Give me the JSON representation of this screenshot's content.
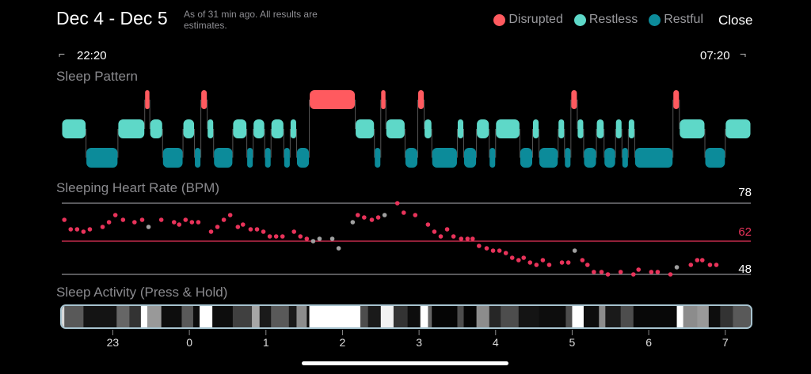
{
  "header": {
    "title": "Dec 4 - Dec 5",
    "subtitle": "As of 31 min ago. All results are estimates.",
    "close_label": "Close"
  },
  "legend": [
    {
      "label": "Disrupted",
      "color": "#ff5a5f"
    },
    {
      "label": "Restless",
      "color": "#5ed8c8"
    },
    {
      "label": "Restful",
      "color": "#0c8b9a"
    }
  ],
  "range": {
    "start": "22:20",
    "end": "07:20",
    "start_bracket": "⌐",
    "end_bracket": "¬"
  },
  "sections": {
    "pattern": "Sleep Pattern",
    "heart_rate": "Sleeping Heart Rate (BPM)",
    "activity": "Sleep Activity (Press & Hold)"
  },
  "chart_data": [
    {
      "type": "timeline",
      "title": "Sleep Pattern",
      "x_unit": "minutes since 22:20",
      "xlim": [
        0,
        540
      ],
      "stages": [
        "Disrupted",
        "Restless",
        "Restful"
      ],
      "segments": [
        [
          "Restless",
          0,
          19
        ],
        [
          "Restful",
          19,
          44
        ],
        [
          "Restless",
          44,
          65
        ],
        [
          "Disrupted",
          65,
          69
        ],
        [
          "Restless",
          69,
          79
        ],
        [
          "Restful",
          79,
          95
        ],
        [
          "Restless",
          95,
          104
        ],
        [
          "Restful",
          104,
          109
        ],
        [
          "Disrupted",
          109,
          114
        ],
        [
          "Restless",
          114,
          119
        ],
        [
          "Restful",
          119,
          134
        ],
        [
          "Restless",
          134,
          145
        ],
        [
          "Restful",
          145,
          150
        ],
        [
          "Restless",
          150,
          159
        ],
        [
          "Restful",
          159,
          164
        ],
        [
          "Restless",
          164,
          174
        ],
        [
          "Restful",
          174,
          179
        ],
        [
          "Restless",
          179,
          184
        ],
        [
          "Restful",
          184,
          194
        ],
        [
          "Disrupted",
          194,
          230
        ],
        [
          "Restless",
          230,
          245
        ],
        [
          "Restful",
          245,
          250
        ],
        [
          "Disrupted",
          250,
          254
        ],
        [
          "Restless",
          254,
          269
        ],
        [
          "Restful",
          269,
          279
        ],
        [
          "Disrupted",
          279,
          284
        ],
        [
          "Restless",
          284,
          290
        ],
        [
          "Restful",
          290,
          310
        ],
        [
          "Restless",
          310,
          315
        ],
        [
          "Restful",
          315,
          325
        ],
        [
          "Restless",
          325,
          335
        ],
        [
          "Restful",
          335,
          340
        ],
        [
          "Restless",
          340,
          359
        ],
        [
          "Restful",
          359,
          369
        ],
        [
          "Restless",
          369,
          374
        ],
        [
          "Restful",
          374,
          389
        ],
        [
          "Restless",
          389,
          394
        ],
        [
          "Restful",
          394,
          399
        ],
        [
          "Disrupted",
          399,
          404
        ],
        [
          "Restless",
          404,
          409
        ],
        [
          "Restful",
          409,
          419
        ],
        [
          "Restless",
          419,
          425
        ],
        [
          "Restful",
          425,
          434
        ],
        [
          "Restless",
          434,
          439
        ],
        [
          "Restful",
          439,
          444
        ],
        [
          "Restless",
          444,
          449
        ],
        [
          "Restful",
          449,
          479
        ],
        [
          "Disrupted",
          479,
          484
        ],
        [
          "Restless",
          484,
          504
        ],
        [
          "Restful",
          504,
          520
        ],
        [
          "Restless",
          520,
          540
        ]
      ]
    },
    {
      "type": "scatter",
      "title": "Sleeping Heart Rate (BPM)",
      "x_unit": "minutes since 22:20",
      "xlim": [
        0,
        540
      ],
      "ylim": [
        48,
        78
      ],
      "reference_lines": [
        {
          "value": 78,
          "label": "78",
          "color": "#8e8e93"
        },
        {
          "value": 62,
          "label": "62",
          "color": "#e8335a"
        },
        {
          "value": 48,
          "label": "48",
          "color": "#8e8e93"
        }
      ],
      "points": [
        [
          2,
          71,
          0
        ],
        [
          7,
          67,
          0
        ],
        [
          12,
          67,
          0
        ],
        [
          17,
          66,
          0
        ],
        [
          22,
          67,
          0
        ],
        [
          32,
          68,
          0
        ],
        [
          37,
          70,
          0
        ],
        [
          42,
          73,
          0
        ],
        [
          48,
          71,
          0
        ],
        [
          57,
          70,
          0
        ],
        [
          63,
          71,
          0
        ],
        [
          68,
          68,
          1
        ],
        [
          78,
          71,
          0
        ],
        [
          88,
          70,
          0
        ],
        [
          92,
          69,
          0
        ],
        [
          97,
          71,
          0
        ],
        [
          102,
          70,
          0
        ],
        [
          107,
          70,
          0
        ],
        [
          117,
          66,
          0
        ],
        [
          122,
          68,
          0
        ],
        [
          127,
          71,
          0
        ],
        [
          132,
          73,
          0
        ],
        [
          138,
          68,
          0
        ],
        [
          142,
          69,
          0
        ],
        [
          148,
          67,
          0
        ],
        [
          153,
          67,
          0
        ],
        [
          158,
          66,
          0
        ],
        [
          163,
          64,
          0
        ],
        [
          168,
          64,
          0
        ],
        [
          173,
          64,
          0
        ],
        [
          182,
          66,
          0
        ],
        [
          187,
          64,
          0
        ],
        [
          192,
          63,
          0
        ],
        [
          197,
          62,
          1
        ],
        [
          202,
          63,
          1
        ],
        [
          212,
          63,
          1
        ],
        [
          217,
          59,
          1
        ],
        [
          228,
          70,
          1
        ],
        [
          232,
          73,
          0
        ],
        [
          237,
          72,
          0
        ],
        [
          243,
          71,
          0
        ],
        [
          248,
          72,
          0
        ],
        [
          253,
          73,
          1
        ],
        [
          263,
          78,
          0
        ],
        [
          268,
          74,
          0
        ],
        [
          277,
          73,
          0
        ],
        [
          287,
          69,
          0
        ],
        [
          292,
          66,
          0
        ],
        [
          297,
          64,
          0
        ],
        [
          302,
          67,
          0
        ],
        [
          307,
          64,
          0
        ],
        [
          313,
          63,
          0
        ],
        [
          318,
          63,
          0
        ],
        [
          322,
          63,
          0
        ],
        [
          327,
          60,
          0
        ],
        [
          333,
          59,
          0
        ],
        [
          338,
          58,
          0
        ],
        [
          343,
          58,
          0
        ],
        [
          348,
          57,
          0
        ],
        [
          353,
          55,
          0
        ],
        [
          358,
          54,
          0
        ],
        [
          362,
          55,
          0
        ],
        [
          367,
          53,
          0
        ],
        [
          372,
          52,
          0
        ],
        [
          377,
          54,
          0
        ],
        [
          382,
          52,
          0
        ],
        [
          392,
          53,
          0
        ],
        [
          397,
          53,
          0
        ],
        [
          402,
          58,
          1
        ],
        [
          408,
          54,
          0
        ],
        [
          412,
          52,
          0
        ],
        [
          417,
          49,
          0
        ],
        [
          423,
          49,
          0
        ],
        [
          428,
          48,
          0
        ],
        [
          438,
          49,
          0
        ],
        [
          448,
          48,
          0
        ],
        [
          452,
          50,
          0
        ],
        [
          462,
          49,
          0
        ],
        [
          467,
          49,
          0
        ],
        [
          477,
          48,
          0
        ],
        [
          482,
          51,
          1
        ],
        [
          493,
          52,
          0
        ],
        [
          498,
          54,
          0
        ],
        [
          502,
          54,
          0
        ],
        [
          508,
          52,
          0
        ],
        [
          513,
          52,
          0
        ]
      ],
      "point_note": "third value 1 = gray (estimated) point",
      "colors": {
        "normal": "#e8335a",
        "estimated": "#a0a0a0"
      }
    },
    {
      "type": "heatmap",
      "title": "Sleep Activity (Press & Hold)",
      "x_unit": "minutes since 22:20",
      "xlim": [
        0,
        540
      ],
      "tick_labels": [
        "23",
        "0",
        "1",
        "2",
        "3",
        "4",
        "5",
        "6",
        "7"
      ],
      "tick_minutes": [
        40,
        100,
        160,
        220,
        280,
        340,
        400,
        460,
        520
      ],
      "bands": [
        [
          0,
          2,
          0.85
        ],
        [
          2,
          17,
          0.35
        ],
        [
          17,
          43,
          0.08
        ],
        [
          43,
          53,
          0.4
        ],
        [
          53,
          62,
          0.2
        ],
        [
          62,
          67,
          1
        ],
        [
          67,
          78,
          0.6
        ],
        [
          78,
          94,
          0.05
        ],
        [
          94,
          103,
          0.35
        ],
        [
          103,
          108,
          0.05
        ],
        [
          108,
          118,
          1
        ],
        [
          118,
          134,
          0.05
        ],
        [
          134,
          149,
          0.25
        ],
        [
          149,
          155,
          0.65
        ],
        [
          155,
          164,
          0.1
        ],
        [
          164,
          178,
          0.35
        ],
        [
          178,
          184,
          0.1
        ],
        [
          184,
          192,
          0.55
        ],
        [
          192,
          194,
          0.05
        ],
        [
          194,
          234,
          1
        ],
        [
          234,
          240,
          0.3
        ],
        [
          240,
          250,
          0.1
        ],
        [
          250,
          260,
          0.95
        ],
        [
          260,
          271,
          0.2
        ],
        [
          271,
          281,
          0.05
        ],
        [
          281,
          287,
          1
        ],
        [
          287,
          290,
          0.4
        ],
        [
          290,
          310,
          0.02
        ],
        [
          310,
          315,
          0.3
        ],
        [
          315,
          325,
          0.02
        ],
        [
          325,
          335,
          0.55
        ],
        [
          335,
          344,
          0.15
        ],
        [
          344,
          358,
          0.3
        ],
        [
          358,
          374,
          0.08
        ],
        [
          374,
          395,
          0.05
        ],
        [
          395,
          400,
          0.3
        ],
        [
          400,
          409,
          1
        ],
        [
          409,
          421,
          0.05
        ],
        [
          421,
          426,
          0.55
        ],
        [
          426,
          438,
          0.1
        ],
        [
          438,
          448,
          0.3
        ],
        [
          448,
          482,
          0.03
        ],
        [
          482,
          487,
          1
        ],
        [
          487,
          498,
          0.55
        ],
        [
          498,
          507,
          0.6
        ],
        [
          507,
          516,
          0.05
        ],
        [
          516,
          526,
          0.2
        ],
        [
          526,
          540,
          0.35
        ]
      ]
    }
  ]
}
